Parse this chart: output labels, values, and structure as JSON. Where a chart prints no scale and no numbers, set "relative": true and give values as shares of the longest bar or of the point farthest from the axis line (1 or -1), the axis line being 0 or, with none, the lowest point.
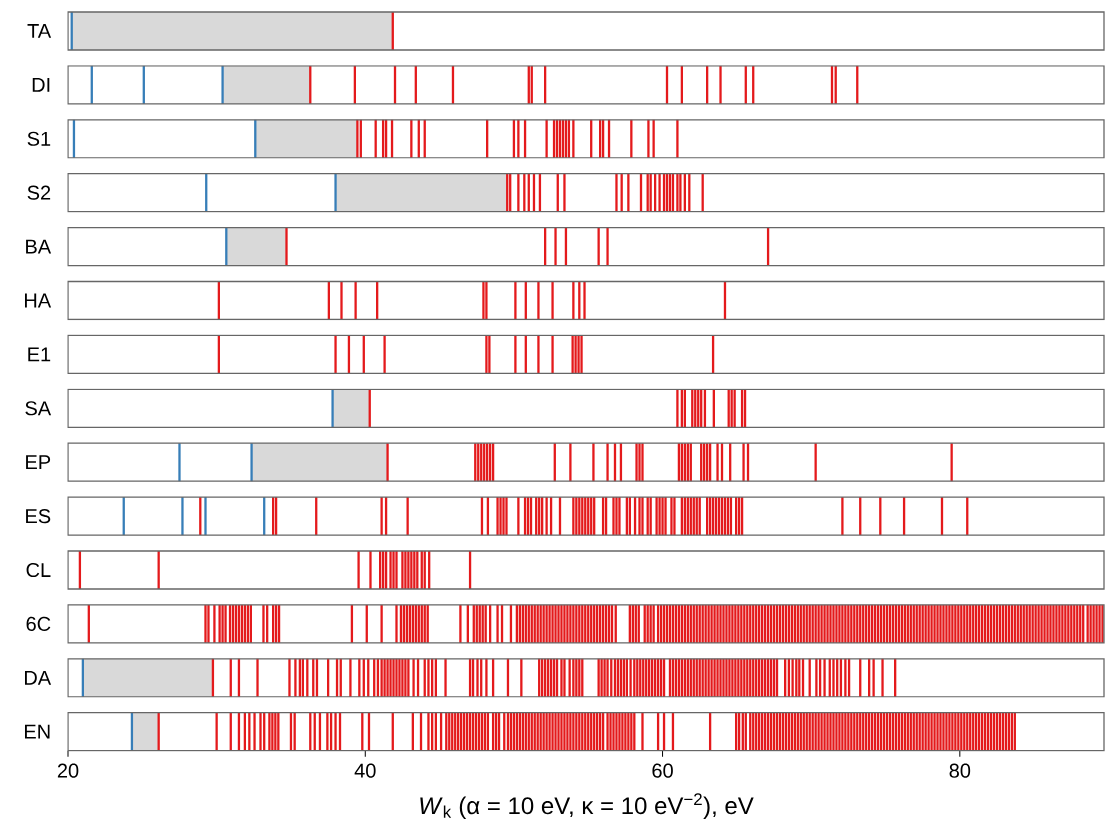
{
  "chart_data": [
    {
      "type": "bar",
      "relative": true,
      "ylabel": "TA",
      "xlim": [
        20,
        89.7
      ],
      "tick_labels": false,
      "bands": [
        {
          "axis": "x",
          "from": 20.25,
          "to": 41.85,
          "color": "#d9d9d9"
        }
      ],
      "series": [
        {
          "color": "#377eb8",
          "x": [
            20.25
          ],
          "values": [
            1
          ]
        },
        {
          "color": "#e41a1c",
          "x": [
            41.85
          ],
          "values": [
            1
          ]
        }
      ]
    },
    {
      "type": "bar",
      "relative": true,
      "ylabel": "DI",
      "xlim": [
        20,
        89.7
      ],
      "tick_labels": false,
      "bands": [
        {
          "axis": "x",
          "from": 30.4,
          "to": 36.3,
          "color": "#d9d9d9"
        }
      ],
      "series": [
        {
          "color": "#377eb8",
          "x": [
            21.6,
            25.1,
            30.4
          ],
          "values": [
            1,
            1,
            1
          ]
        },
        {
          "color": "#e41a1c",
          "x": [
            36.3,
            39.3,
            42.0,
            43.4,
            45.9,
            51.0,
            51.2,
            52.1,
            60.3,
            61.3,
            63.0,
            63.9,
            65.6,
            66.1,
            71.4,
            71.65,
            73.1
          ],
          "values": [
            1,
            1,
            1,
            1,
            1,
            1,
            1,
            1,
            1,
            1,
            1,
            1,
            1,
            1,
            1,
            1,
            1
          ]
        }
      ]
    },
    {
      "type": "bar",
      "relative": true,
      "ylabel": "S1",
      "xlim": [
        20,
        89.7
      ],
      "tick_labels": false,
      "bands": [
        {
          "axis": "x",
          "from": 32.6,
          "to": 39.47,
          "color": "#d9d9d9"
        }
      ],
      "series": [
        {
          "color": "#377eb8",
          "x": [
            20.4,
            32.6
          ],
          "values": [
            1,
            1
          ]
        },
        {
          "color": "#e41a1c",
          "x": [
            39.47,
            39.7,
            40.7,
            41.2,
            41.4,
            41.8,
            43.1,
            43.6,
            44.0,
            48.2,
            50.0,
            50.3,
            50.75,
            52.2,
            52.7,
            52.9,
            53.1,
            53.3,
            53.5,
            53.7,
            54.0,
            55.2,
            55.8,
            56.0,
            56.4,
            57.9,
            59.05,
            59.4,
            61.0
          ],
          "values": [
            1,
            1,
            1,
            1,
            1,
            1,
            1,
            1,
            1,
            1,
            1,
            1,
            1,
            1,
            1,
            1,
            1,
            1,
            1,
            1,
            1,
            1,
            1,
            1,
            1,
            1,
            1,
            1,
            1
          ]
        }
      ]
    },
    {
      "type": "bar",
      "relative": true,
      "ylabel": "S2",
      "xlim": [
        20,
        89.7
      ],
      "tick_labels": false,
      "bands": [
        {
          "axis": "x",
          "from": 38.0,
          "to": 49.55,
          "color": "#d9d9d9"
        }
      ],
      "series": [
        {
          "color": "#377eb8",
          "x": [
            29.3,
            38.0
          ],
          "values": [
            1,
            1
          ]
        },
        {
          "color": "#e41a1c",
          "x": [
            49.55,
            49.75,
            50.3,
            50.7,
            51.0,
            51.35,
            51.75,
            52.95,
            53.4,
            56.9,
            57.25,
            57.7,
            58.55,
            59.0,
            59.2,
            59.5,
            59.8,
            60.1,
            60.3,
            60.5,
            60.7,
            61.0,
            61.2,
            61.5,
            61.8,
            62.7
          ],
          "values": [
            1,
            1,
            1,
            1,
            1,
            1,
            1,
            1,
            1,
            1,
            1,
            1,
            1,
            1,
            1,
            1,
            1,
            1,
            1,
            1,
            1,
            1,
            1,
            1,
            1,
            1
          ]
        }
      ]
    },
    {
      "type": "bar",
      "relative": true,
      "ylabel": "BA",
      "xlim": [
        20,
        89.7
      ],
      "tick_labels": false,
      "bands": [
        {
          "axis": "x",
          "from": 30.65,
          "to": 34.7,
          "color": "#d9d9d9"
        }
      ],
      "series": [
        {
          "color": "#377eb8",
          "x": [
            30.65
          ],
          "values": [
            1
          ]
        },
        {
          "color": "#e41a1c",
          "x": [
            34.7,
            52.1,
            52.8,
            53.5,
            55.7,
            56.3,
            67.1
          ],
          "values": [
            1,
            1,
            1,
            1,
            1,
            1,
            1
          ]
        }
      ]
    },
    {
      "type": "bar",
      "relative": true,
      "ylabel": "HA",
      "xlim": [
        20,
        89.7
      ],
      "tick_labels": false,
      "series": [
        {
          "color": "#e41a1c",
          "x": [
            30.15,
            37.55,
            38.4,
            39.35,
            40.8,
            47.95,
            48.15,
            50.1,
            50.8,
            51.65,
            52.6,
            54.0,
            54.4,
            54.75,
            64.2
          ],
          "values": [
            1,
            1,
            1,
            1,
            1,
            1,
            1,
            1,
            1,
            1,
            1,
            1,
            1,
            1,
            1
          ]
        }
      ]
    },
    {
      "type": "bar",
      "relative": true,
      "ylabel": "E1",
      "xlim": [
        20,
        89.7
      ],
      "tick_labels": false,
      "series": [
        {
          "color": "#e41a1c",
          "x": [
            30.15,
            38.0,
            38.9,
            39.9,
            41.3,
            48.15,
            48.35,
            50.1,
            50.8,
            51.65,
            52.6,
            53.95,
            54.15,
            54.35,
            54.55,
            63.4
          ],
          "values": [
            1,
            1,
            1,
            1,
            1,
            1,
            1,
            1,
            1,
            1,
            1,
            1,
            1,
            1,
            1,
            1
          ]
        }
      ]
    },
    {
      "type": "bar",
      "relative": true,
      "ylabel": "SA",
      "xlim": [
        20,
        89.7
      ],
      "tick_labels": false,
      "bands": [
        {
          "axis": "x",
          "from": 37.8,
          "to": 40.3,
          "color": "#d9d9d9"
        }
      ],
      "series": [
        {
          "color": "#377eb8",
          "x": [
            37.8
          ],
          "values": [
            1
          ]
        },
        {
          "color": "#e41a1c",
          "x": [
            40.3,
            61.0,
            61.3,
            61.5,
            62.0,
            62.2,
            62.4,
            62.6,
            62.85,
            63.45,
            64.45,
            64.65,
            64.85,
            65.35,
            65.55
          ],
          "values": [
            1,
            1,
            1,
            1,
            1,
            1,
            1,
            1,
            1,
            1,
            1,
            1,
            1,
            1,
            1
          ]
        }
      ]
    },
    {
      "type": "bar",
      "relative": true,
      "ylabel": "EP",
      "xlim": [
        20,
        89.7
      ],
      "tick_labels": false,
      "bands": [
        {
          "axis": "x",
          "from": 32.35,
          "to": 41.5,
          "color": "#d9d9d9"
        }
      ],
      "series": [
        {
          "color": "#377eb8",
          "x": [
            27.5,
            32.35
          ],
          "values": [
            1,
            1
          ]
        },
        {
          "color": "#e41a1c",
          "x": [
            41.5,
            47.4,
            47.6,
            47.8,
            48.0,
            48.2,
            48.4,
            48.6,
            52.75,
            53.8,
            55.35,
            56.3,
            56.8,
            57.2,
            58.25,
            58.45,
            58.65,
            61.1,
            61.3,
            61.5,
            61.7,
            61.9,
            62.6,
            62.8,
            63.0,
            63.2,
            63.7,
            64.0,
            64.55,
            65.45,
            65.75,
            70.3,
            79.45
          ],
          "values": [
            1,
            1,
            1,
            1,
            1,
            1,
            1,
            1,
            1,
            1,
            1,
            1,
            1,
            1,
            1,
            1,
            1,
            1,
            1,
            1,
            1,
            1,
            1,
            1,
            1,
            1,
            1,
            1,
            1,
            1,
            1,
            1,
            1
          ]
        }
      ]
    },
    {
      "type": "bar",
      "relative": true,
      "ylabel": "ES",
      "xlim": [
        20,
        89.7
      ],
      "tick_labels": false,
      "series": [
        {
          "color": "#377eb8",
          "x": [
            23.75,
            27.7,
            29.25,
            33.2
          ],
          "values": [
            1,
            1,
            1,
            1
          ]
        },
        {
          "color": "#e41a1c",
          "x": [
            28.9,
            33.8,
            34.0,
            36.7,
            41.1,
            41.4,
            42.85,
            47.85,
            48.25,
            48.9,
            49.1,
            49.3,
            49.5,
            50.3,
            50.75,
            50.95,
            51.15,
            51.5,
            51.7,
            51.9,
            52.2,
            52.5,
            53.1,
            54.0,
            54.2,
            54.4,
            54.6,
            54.8,
            55.0,
            55.2,
            55.4,
            56.0,
            56.2,
            56.7,
            56.9,
            57.1,
            57.6,
            57.8,
            58.15,
            58.45,
            58.65,
            59.0,
            59.2,
            59.6,
            59.8,
            60.0,
            60.2,
            60.6,
            60.8,
            61.3,
            61.5,
            61.7,
            61.9,
            62.1,
            62.3,
            62.5,
            63.0,
            63.2,
            63.4,
            63.6,
            63.8,
            64.0,
            64.2,
            64.4,
            64.6,
            64.95,
            65.15,
            65.35,
            72.1,
            73.3,
            74.65,
            76.25,
            78.8,
            80.5
          ],
          "values": [
            1,
            1,
            1,
            1,
            1,
            1,
            1,
            1,
            1,
            1,
            1,
            1,
            1,
            1,
            1,
            1,
            1,
            1,
            1,
            1,
            1,
            1,
            1,
            1,
            1,
            1,
            1,
            1,
            1,
            1,
            1,
            1,
            1,
            1,
            1,
            1,
            1,
            1,
            1,
            1,
            1,
            1,
            1,
            1,
            1,
            1,
            1,
            1,
            1,
            1,
            1,
            1,
            1,
            1,
            1,
            1,
            1,
            1,
            1,
            1,
            1,
            1,
            1,
            1,
            1,
            1,
            1,
            1,
            1,
            1,
            1,
            1,
            1,
            1
          ]
        }
      ]
    },
    {
      "type": "bar",
      "relative": true,
      "ylabel": "CL",
      "xlim": [
        20,
        89.7
      ],
      "tick_labels": false,
      "series": [
        {
          "color": "#e41a1c",
          "x": [
            20.8,
            26.1,
            39.55,
            40.35,
            41.0,
            41.2,
            41.4,
            41.7,
            41.9,
            42.1,
            42.5,
            42.7,
            42.9,
            43.1,
            43.3,
            43.5,
            43.8,
            44.0,
            44.3,
            47.05
          ],
          "values": [
            1,
            1,
            1,
            1,
            1,
            1,
            1,
            1,
            1,
            1,
            1,
            1,
            1,
            1,
            1,
            1,
            1,
            1,
            1,
            1
          ]
        }
      ]
    },
    {
      "type": "bar",
      "relative": true,
      "ylabel": "6C",
      "xlim": [
        20,
        89.7
      ],
      "tick_labels": false,
      "series": [
        {
          "color": "#e41a1c",
          "x": [
            21.4,
            29.25,
            29.45,
            29.85,
            30.2,
            30.4,
            30.6,
            30.9,
            31.1,
            31.3,
            31.5,
            31.7,
            31.9,
            32.1,
            32.3,
            33.15,
            33.4,
            33.8,
            34.0,
            34.2,
            39.1,
            40.1,
            41.1,
            42.1,
            42.4,
            42.6,
            42.8,
            43.0,
            43.2,
            43.4,
            43.6,
            43.8,
            44.0,
            44.2,
            46.4,
            46.9,
            47.3,
            47.5,
            47.7,
            47.9,
            48.1,
            48.4,
            48.9,
            49.2,
            49.8,
            50.2,
            50.4,
            50.6,
            50.8,
            51.0,
            51.2,
            51.4,
            51.6,
            51.8,
            52.0,
            52.2,
            52.4,
            52.6,
            52.8,
            53.0,
            53.2,
            53.4,
            53.6,
            53.8,
            54.0,
            54.2,
            54.4,
            54.6,
            54.8,
            55.0,
            55.2,
            55.4,
            55.6,
            55.8,
            56.0,
            56.2,
            56.4,
            56.6,
            56.85,
            57.8,
            58.0,
            58.2,
            58.4,
            58.8,
            59.0,
            59.2,
            59.4,
            59.7,
            59.9,
            60.1,
            60.3,
            60.5,
            60.7,
            60.9,
            61.1,
            61.3,
            61.5,
            61.7,
            61.9,
            62.1,
            62.3,
            62.5,
            62.7,
            62.9,
            63.1,
            63.3,
            63.5,
            63.7,
            63.9,
            64.1,
            64.3,
            64.5,
            64.7,
            64.9,
            65.1,
            65.3,
            65.5,
            65.7,
            65.9,
            66.1,
            66.3,
            66.5,
            66.7,
            66.9,
            67.1,
            67.3,
            67.5,
            67.7,
            67.9,
            68.1,
            68.3,
            68.5,
            68.7,
            68.9,
            69.1,
            69.3,
            69.5,
            69.7,
            69.9,
            70.1,
            70.3,
            70.5,
            70.7,
            70.9,
            71.1,
            71.3,
            71.5,
            71.7,
            71.9,
            72.1,
            72.3,
            72.5,
            72.7,
            72.9,
            73.1,
            73.3,
            73.5,
            73.7,
            73.9,
            74.1,
            74.3,
            74.5,
            74.7,
            74.9,
            75.1,
            75.3,
            75.5,
            75.7,
            75.9,
            76.1,
            76.3,
            76.5,
            76.7,
            76.9,
            77.1,
            77.3,
            77.5,
            77.7,
            77.9,
            78.1,
            78.3,
            78.5,
            78.7,
            78.9,
            79.1,
            79.3,
            79.5,
            79.7,
            79.9,
            80.1,
            80.3,
            80.5,
            80.7,
            80.9,
            81.1,
            81.3,
            81.5,
            81.7,
            81.9,
            82.1,
            82.3,
            82.5,
            82.7,
            82.9,
            83.1,
            83.3,
            83.5,
            83.7,
            83.9,
            84.1,
            84.3,
            84.5,
            84.7,
            84.9,
            85.1,
            85.3,
            85.5,
            85.7,
            85.9,
            86.1,
            86.3,
            86.5,
            86.7,
            86.9,
            87.1,
            87.3,
            87.5,
            87.7,
            87.9,
            88.1,
            88.3,
            88.6,
            88.8,
            89.0,
            89.2,
            89.4,
            89.6
          ],
          "values": [
            1,
            1,
            1,
            1,
            1,
            1,
            1,
            1,
            1,
            1,
            1,
            1,
            1,
            1,
            1,
            1,
            1,
            1,
            1,
            1,
            1,
            1,
            1,
            1,
            1,
            1,
            1,
            1,
            1,
            1,
            1,
            1,
            1,
            1,
            1,
            1,
            1,
            1,
            1,
            1,
            1,
            1,
            1,
            1,
            1,
            1,
            1,
            1,
            1,
            1,
            1,
            1,
            1,
            1,
            1,
            1,
            1,
            1,
            1,
            1,
            1,
            1,
            1,
            1,
            1,
            1,
            1,
            1,
            1,
            1,
            1,
            1,
            1,
            1,
            1,
            1,
            1,
            1,
            1,
            1,
            1,
            1,
            1,
            1,
            1,
            1,
            1,
            1,
            1,
            1,
            1,
            1,
            1,
            1,
            1,
            1,
            1,
            1,
            1,
            1,
            1,
            1,
            1,
            1,
            1,
            1,
            1,
            1,
            1,
            1,
            1,
            1,
            1,
            1,
            1,
            1,
            1,
            1,
            1,
            1,
            1,
            1,
            1,
            1,
            1,
            1,
            1,
            1,
            1,
            1,
            1,
            1,
            1,
            1,
            1,
            1,
            1,
            1,
            1,
            1,
            1,
            1,
            1,
            1,
            1,
            1,
            1,
            1,
            1,
            1,
            1,
            1,
            1,
            1,
            1,
            1,
            1,
            1,
            1,
            1,
            1,
            1,
            1,
            1,
            1,
            1,
            1,
            1,
            1,
            1,
            1,
            1,
            1,
            1,
            1,
            1,
            1,
            1,
            1,
            1,
            1,
            1,
            1,
            1,
            1,
            1,
            1,
            1,
            1,
            1,
            1,
            1,
            1,
            1,
            1,
            1,
            1,
            1,
            1,
            1,
            1,
            1,
            1,
            1,
            1,
            1,
            1,
            1,
            1,
            1,
            1,
            1,
            1,
            1,
            1,
            1,
            1,
            1,
            1,
            1,
            1,
            1,
            1,
            1,
            1,
            1,
            1,
            1,
            1,
            1,
            1,
            1,
            1,
            1,
            1,
            1,
            1
          ]
        }
      ]
    },
    {
      "type": "bar",
      "relative": true,
      "ylabel": "DA",
      "xlim": [
        20,
        89.7
      ],
      "tick_labels": false,
      "bands": [
        {
          "axis": "x",
          "from": 21.0,
          "to": 29.75,
          "color": "#d9d9d9"
        }
      ],
      "series": [
        {
          "color": "#377eb8",
          "x": [
            21.0
          ],
          "values": [
            1
          ]
        },
        {
          "color": "#e41a1c",
          "x": [
            29.75,
            30.95,
            31.5,
            32.75,
            34.9,
            35.3,
            35.6,
            35.8,
            36.1,
            36.5,
            36.75,
            37.5,
            38.1,
            38.35,
            39.0,
            39.6,
            39.9,
            40.2,
            40.6,
            40.85,
            41.1,
            41.3,
            41.5,
            41.7,
            41.9,
            42.1,
            42.3,
            42.5,
            42.7,
            42.9,
            43.25,
            43.55,
            44.0,
            44.25,
            44.5,
            44.75,
            45.4,
            47.05,
            47.25,
            47.55,
            47.8,
            48.15,
            48.6,
            49.6,
            50.5,
            51.7,
            51.9,
            52.1,
            52.3,
            52.5,
            52.7,
            52.9,
            53.2,
            53.4,
            53.75,
            54.0,
            54.2,
            54.4,
            54.6,
            55.7,
            55.9,
            56.1,
            56.3,
            56.55,
            56.8,
            57.0,
            57.2,
            57.4,
            57.6,
            57.85,
            58.1,
            58.3,
            58.5,
            58.7,
            58.9,
            59.1,
            59.3,
            59.5,
            59.7,
            59.9,
            60.1,
            60.5,
            60.7,
            60.9,
            61.1,
            61.3,
            61.5,
            61.7,
            61.9,
            62.1,
            62.3,
            62.5,
            62.7,
            62.9,
            63.1,
            63.3,
            63.5,
            63.7,
            63.9,
            64.1,
            64.3,
            64.5,
            64.7,
            64.9,
            65.1,
            65.3,
            65.5,
            65.7,
            65.9,
            66.1,
            66.3,
            66.5,
            66.7,
            66.9,
            67.1,
            67.3,
            67.5,
            67.7,
            68.25,
            68.5,
            68.75,
            69.0,
            69.2,
            69.45,
            69.9,
            70.35,
            70.6,
            70.9,
            71.25,
            71.5,
            71.75,
            72.0,
            72.3,
            72.55,
            73.3,
            73.9,
            74.2,
            74.8,
            75.65
          ],
          "values": [
            1,
            1,
            1,
            1,
            1,
            1,
            1,
            1,
            1,
            1,
            1,
            1,
            1,
            1,
            1,
            1,
            1,
            1,
            1,
            1,
            1,
            1,
            1,
            1,
            1,
            1,
            1,
            1,
            1,
            1,
            1,
            1,
            1,
            1,
            1,
            1,
            1,
            1,
            1,
            1,
            1,
            1,
            1,
            1,
            1,
            1,
            1,
            1,
            1,
            1,
            1,
            1,
            1,
            1,
            1,
            1,
            1,
            1,
            1,
            1,
            1,
            1,
            1,
            1,
            1,
            1,
            1,
            1,
            1,
            1,
            1,
            1,
            1,
            1,
            1,
            1,
            1,
            1,
            1,
            1,
            1,
            1,
            1,
            1,
            1,
            1,
            1,
            1,
            1,
            1,
            1,
            1,
            1,
            1,
            1,
            1,
            1,
            1,
            1,
            1,
            1,
            1,
            1,
            1,
            1,
            1,
            1,
            1,
            1,
            1,
            1,
            1,
            1,
            1,
            1,
            1,
            1,
            1,
            1,
            1,
            1,
            1,
            1,
            1,
            1,
            1,
            1,
            1,
            1,
            1,
            1,
            1,
            1,
            1,
            1,
            1,
            1,
            1,
            1
          ]
        }
      ]
    },
    {
      "type": "bar",
      "relative": true,
      "ylabel": "EN",
      "xlim": [
        20,
        89.7
      ],
      "tick_labels": "x",
      "xticks": [
        20,
        40,
        60,
        80
      ],
      "xlabel": "*W*$_{k}$ (α = 10 eV, κ = 10 eV$^{−2}$), eV",
      "bands": [
        {
          "axis": "x",
          "from": 24.3,
          "to": 26.1,
          "color": "#d9d9d9"
        }
      ],
      "series": [
        {
          "color": "#377eb8",
          "x": [
            24.3
          ],
          "values": [
            1
          ]
        },
        {
          "color": "#e41a1c",
          "x": [
            26.1,
            30.0,
            30.95,
            31.5,
            31.9,
            32.2,
            32.55,
            32.95,
            33.2,
            33.55,
            33.75,
            33.95,
            34.15,
            35.0,
            35.25,
            36.3,
            36.6,
            36.95,
            37.45,
            37.7,
            38.0,
            38.3,
            39.8,
            40.25,
            41.85,
            43.2,
            43.75,
            44.25,
            44.5,
            44.75,
            45.1,
            45.45,
            45.65,
            45.85,
            46.05,
            46.25,
            46.45,
            46.65,
            46.85,
            47.05,
            47.25,
            47.45,
            47.65,
            47.85,
            48.05,
            48.25,
            48.6,
            48.8,
            49.0,
            49.35,
            49.6,
            49.8,
            50.0,
            50.2,
            50.4,
            50.6,
            50.8,
            51.0,
            51.2,
            51.4,
            51.6,
            51.8,
            52.0,
            52.2,
            52.4,
            52.6,
            52.8,
            53.0,
            53.2,
            53.4,
            53.6,
            53.8,
            54.0,
            54.2,
            54.4,
            54.6,
            54.8,
            55.0,
            55.2,
            55.4,
            55.6,
            55.8,
            56.0,
            56.3,
            56.5,
            56.7,
            56.9,
            57.1,
            57.3,
            57.5,
            57.7,
            57.9,
            58.1,
            58.65,
            59.7,
            60.1,
            60.7,
            63.2,
            64.95,
            65.15,
            65.4,
            65.6,
            65.9,
            66.1,
            66.3,
            66.5,
            66.7,
            66.9,
            67.1,
            67.3,
            67.5,
            67.7,
            67.9,
            68.1,
            68.3,
            68.5,
            68.7,
            68.9,
            69.1,
            69.3,
            69.5,
            69.7,
            69.9,
            70.1,
            70.3,
            70.5,
            70.7,
            70.9,
            71.1,
            71.3,
            71.5,
            71.7,
            71.9,
            72.1,
            72.3,
            72.5,
            72.7,
            72.9,
            73.1,
            73.3,
            73.5,
            73.7,
            73.9,
            74.1,
            74.3,
            74.5,
            74.7,
            74.9,
            75.1,
            75.3,
            75.5,
            75.7,
            75.9,
            76.1,
            76.3,
            76.5,
            76.7,
            76.9,
            77.1,
            77.3,
            77.5,
            77.7,
            77.9,
            78.1,
            78.3,
            78.5,
            78.7,
            78.9,
            79.1,
            79.3,
            79.5,
            79.7,
            79.9,
            80.1,
            80.3,
            80.5,
            80.7,
            80.9,
            81.1,
            81.3,
            81.5,
            81.7,
            81.9,
            82.1,
            82.3,
            82.5,
            82.7,
            82.9,
            83.1,
            83.3,
            83.5,
            83.7
          ],
          "values": [
            1,
            1,
            1,
            1,
            1,
            1,
            1,
            1,
            1,
            1,
            1,
            1,
            1,
            1,
            1,
            1,
            1,
            1,
            1,
            1,
            1,
            1,
            1,
            1,
            1,
            1,
            1,
            1,
            1,
            1,
            1,
            1,
            1,
            1,
            1,
            1,
            1,
            1,
            1,
            1,
            1,
            1,
            1,
            1,
            1,
            1,
            1,
            1,
            1,
            1,
            1,
            1,
            1,
            1,
            1,
            1,
            1,
            1,
            1,
            1,
            1,
            1,
            1,
            1,
            1,
            1,
            1,
            1,
            1,
            1,
            1,
            1,
            1,
            1,
            1,
            1,
            1,
            1,
            1,
            1,
            1,
            1,
            1,
            1,
            1,
            1,
            1,
            1,
            1,
            1,
            1,
            1,
            1,
            1,
            1,
            1,
            1,
            1,
            1,
            1,
            1,
            1,
            1,
            1,
            1,
            1,
            1,
            1,
            1,
            1,
            1,
            1,
            1,
            1,
            1,
            1,
            1,
            1,
            1,
            1,
            1,
            1,
            1,
            1,
            1,
            1,
            1,
            1,
            1,
            1,
            1,
            1,
            1,
            1,
            1,
            1,
            1,
            1,
            1,
            1,
            1,
            1,
            1,
            1,
            1,
            1,
            1,
            1,
            1,
            1,
            1,
            1,
            1,
            1,
            1,
            1,
            1,
            1,
            1,
            1,
            1,
            1,
            1,
            1,
            1,
            1,
            1,
            1,
            1,
            1,
            1,
            1,
            1,
            1,
            1,
            1,
            1,
            1,
            1,
            1,
            1,
            1,
            1,
            1,
            1,
            1,
            1,
            1,
            1,
            1,
            1,
            1
          ]
        }
      ]
    }
  ]
}
